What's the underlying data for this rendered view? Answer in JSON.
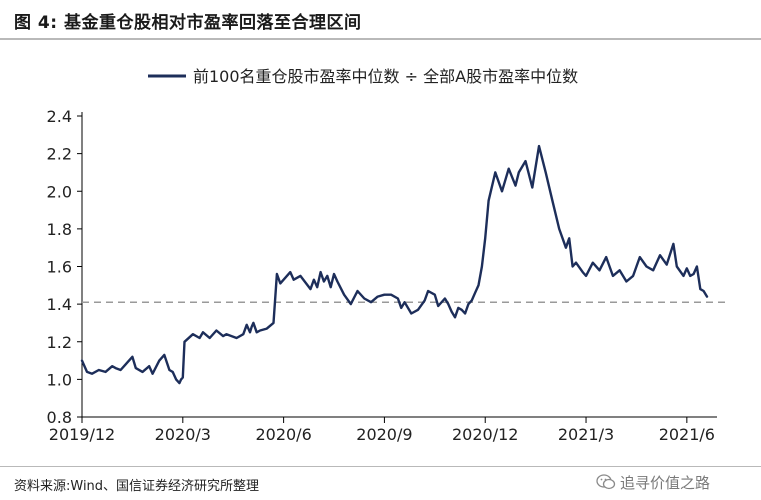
{
  "header": {
    "title": "图 4:  基金重仓股相对市盈率回落至合理区间"
  },
  "chart_data": {
    "type": "line",
    "title": "",
    "xlabel": "",
    "ylabel": "",
    "ylim": [
      0.8,
      2.4
    ],
    "yticks": [
      "0.8",
      "1.0",
      "1.2",
      "1.4",
      "1.6",
      "1.8",
      "2.0",
      "2.2",
      "2.4"
    ],
    "xticks": [
      "2019/12",
      "2020/3",
      "2020/6",
      "2020/9",
      "2020/12",
      "2021/3",
      "2021/6"
    ],
    "legend_position": "top-center",
    "grid": false,
    "reference_line": {
      "y": 1.41,
      "style": "dashed"
    },
    "series": [
      {
        "name": "前100名重仓股市盈率中位数 ÷ 全部A股市盈率中位数",
        "x_months": [
          0,
          0.15,
          0.3,
          0.5,
          0.7,
          0.9,
          1.0,
          1.15,
          1.3,
          1.5,
          1.6,
          1.8,
          2.0,
          2.1,
          2.3,
          2.45,
          2.6,
          2.7,
          2.8,
          2.9,
          2.95,
          3.0,
          3.05,
          3.3,
          3.5,
          3.6,
          3.8,
          4.0,
          4.2,
          4.3,
          4.6,
          4.8,
          4.9,
          5.0,
          5.05,
          5.1,
          5.2,
          5.3,
          5.5,
          5.7,
          5.8,
          5.9,
          6.2,
          6.3,
          6.5,
          6.8,
          6.9,
          7.0,
          7.1,
          7.2,
          7.3,
          7.4,
          7.5,
          7.6,
          7.8,
          8.0,
          8.2,
          8.4,
          8.6,
          8.8,
          9.0,
          9.2,
          9.4,
          9.5,
          9.6,
          9.8,
          10.0,
          10.2,
          10.3,
          10.5,
          10.6,
          10.8,
          10.9,
          11.0,
          11.1,
          11.2,
          11.3,
          11.4,
          11.5,
          11.6,
          11.7,
          11.8,
          11.9,
          12.0,
          12.1,
          12.3,
          12.5,
          12.7,
          12.9,
          13.0,
          13.2,
          13.4,
          13.6,
          13.8,
          14.0,
          14.2,
          14.4,
          14.5,
          14.6,
          14.7,
          14.9,
          15.0,
          15.2,
          15.4,
          15.6,
          15.8,
          16.0,
          16.2,
          16.4,
          16.6,
          16.8,
          17.0,
          17.2,
          17.4,
          17.6,
          17.7,
          17.9,
          18.0,
          18.1,
          18.2,
          18.3,
          18.4,
          18.5,
          18.6
        ],
        "values": [
          1.1,
          1.04,
          1.03,
          1.05,
          1.04,
          1.07,
          1.06,
          1.05,
          1.08,
          1.12,
          1.06,
          1.04,
          1.07,
          1.03,
          1.1,
          1.13,
          1.05,
          1.04,
          1.0,
          0.98,
          1.0,
          1.01,
          1.2,
          1.24,
          1.22,
          1.25,
          1.22,
          1.26,
          1.23,
          1.24,
          1.22,
          1.24,
          1.29,
          1.25,
          1.28,
          1.3,
          1.25,
          1.26,
          1.27,
          1.3,
          1.56,
          1.51,
          1.57,
          1.53,
          1.55,
          1.48,
          1.53,
          1.49,
          1.57,
          1.52,
          1.55,
          1.49,
          1.56,
          1.52,
          1.45,
          1.4,
          1.47,
          1.43,
          1.41,
          1.44,
          1.45,
          1.45,
          1.43,
          1.38,
          1.41,
          1.35,
          1.37,
          1.42,
          1.47,
          1.45,
          1.39,
          1.43,
          1.4,
          1.36,
          1.33,
          1.38,
          1.37,
          1.35,
          1.4,
          1.42,
          1.46,
          1.5,
          1.6,
          1.75,
          1.95,
          2.1,
          2.0,
          2.12,
          2.03,
          2.1,
          2.16,
          2.02,
          2.24,
          2.1,
          1.95,
          1.8,
          1.7,
          1.75,
          1.6,
          1.62,
          1.57,
          1.55,
          1.62,
          1.58,
          1.65,
          1.55,
          1.58,
          1.52,
          1.55,
          1.65,
          1.6,
          1.58,
          1.66,
          1.61,
          1.72,
          1.6,
          1.55,
          1.59,
          1.55,
          1.56,
          1.6,
          1.48,
          1.47,
          1.44
        ]
      }
    ]
  },
  "footer": {
    "source": "资料来源:Wind、国信证券经济研究所整理",
    "watermark_text": "追寻价值之路"
  }
}
